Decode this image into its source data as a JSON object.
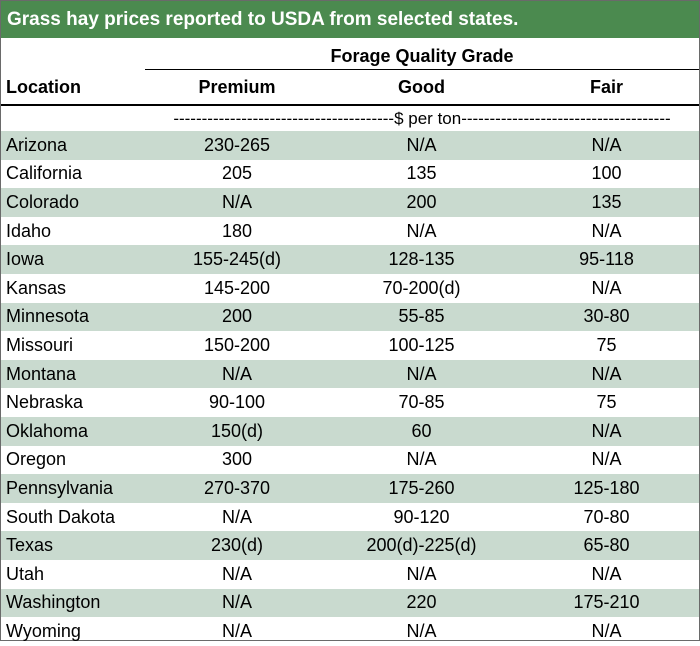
{
  "title": "Grass hay prices reported to USDA from selected states.",
  "header": {
    "group_label": "Forage Quality Grade",
    "location": "Location",
    "premium": "Premium",
    "good": "Good",
    "fair": "Fair",
    "units": "---------------------------------------$ per ton-------------------------------------"
  },
  "row_colors": {
    "shaded": "#c9dacf",
    "title_bg": "#4b8a4f"
  },
  "rows": [
    {
      "location": "Arizona",
      "premium": "230-265",
      "good": "N/A",
      "fair": "N/A"
    },
    {
      "location": "California",
      "premium": "205",
      "good": "135",
      "fair": "100"
    },
    {
      "location": "Colorado",
      "premium": "N/A",
      "good": "200",
      "fair": "135"
    },
    {
      "location": "Idaho",
      "premium": "180",
      "good": "N/A",
      "fair": "N/A"
    },
    {
      "location": "Iowa",
      "premium": "155-245(d)",
      "good": "128-135",
      "fair": "95-118"
    },
    {
      "location": "Kansas",
      "premium": "145-200",
      "good": "70-200(d)",
      "fair": "N/A"
    },
    {
      "location": "Minnesota",
      "premium": "200",
      "good": "55-85",
      "fair": "30-80"
    },
    {
      "location": "Missouri",
      "premium": "150-200",
      "good": "100-125",
      "fair": "75"
    },
    {
      "location": "Montana",
      "premium": "N/A",
      "good": "N/A",
      "fair": "N/A"
    },
    {
      "location": "Nebraska",
      "premium": "90-100",
      "good": "70-85",
      "fair": "75"
    },
    {
      "location": "Oklahoma",
      "premium": "150(d)",
      "good": "60",
      "fair": "N/A"
    },
    {
      "location": "Oregon",
      "premium": "300",
      "good": "N/A",
      "fair": "N/A"
    },
    {
      "location": "Pennsylvania",
      "premium": "270-370",
      "good": "175-260",
      "fair": "125-180"
    },
    {
      "location": "South Dakota",
      "premium": "N/A",
      "good": "90-120",
      "fair": "70-80"
    },
    {
      "location": "Texas",
      "premium": "230(d)",
      "good": "200(d)-225(d)",
      "fair": "65-80"
    },
    {
      "location": "Utah",
      "premium": "N/A",
      "good": "N/A",
      "fair": "N/A"
    },
    {
      "location": "Washington",
      "premium": "N/A",
      "good": "220",
      "fair": "175-210"
    },
    {
      "location": "Wyoming",
      "premium": "N/A",
      "good": "N/A",
      "fair": "N/A"
    }
  ]
}
